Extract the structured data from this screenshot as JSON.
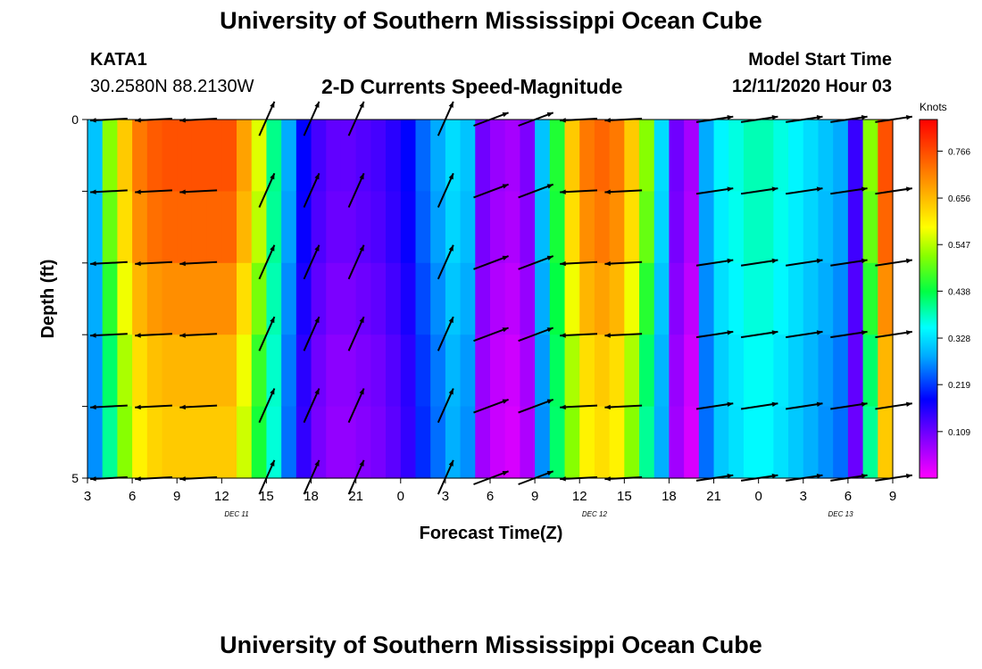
{
  "header": {
    "title": "University of Southern Mississippi Ocean Cube",
    "station_id": "KATA1",
    "station_coords": "30.2580N 88.2130W",
    "chart_title": "2-D Currents Speed-Magnitude",
    "model_start_label": "Model Start Time",
    "model_start_value": "12/11/2020 Hour 03"
  },
  "footer": {
    "title": "University of Southern Mississippi Ocean Cube"
  },
  "chart_data": {
    "type": "heatmap",
    "xlabel": "Forecast Time(Z)",
    "ylabel": "Depth (ft)",
    "x_ticks": [
      "3",
      "6",
      "9",
      "12",
      "15",
      "18",
      "21",
      "0",
      "3",
      "6",
      "9",
      "12",
      "15",
      "18",
      "21",
      "0",
      "3",
      "6",
      "9"
    ],
    "date_labels": [
      {
        "label": "DEC 11",
        "hour_index": 10
      },
      {
        "label": "DEC 12",
        "hour_index": 34
      },
      {
        "label": "DEC 13",
        "hour_index": 50.5
      }
    ],
    "y_ticks": [
      "0",
      "5"
    ],
    "ylim": [
      0,
      5
    ],
    "x_range_hours": [
      0,
      54
    ],
    "colorbar": {
      "unit": "Knots",
      "ticks": [
        "0.766",
        "0.656",
        "0.547",
        "0.438",
        "0.328",
        "0.219",
        "0.109"
      ],
      "range": [
        0,
        0.84
      ]
    },
    "speed_columns_knots": [
      0.3,
      0.5,
      0.62,
      0.7,
      0.73,
      0.74,
      0.74,
      0.74,
      0.74,
      0.74,
      0.66,
      0.55,
      0.4,
      0.28,
      0.18,
      0.13,
      0.11,
      0.11,
      0.12,
      0.13,
      0.15,
      0.18,
      0.24,
      0.28,
      0.32,
      0.3,
      0.1,
      0.07,
      0.06,
      0.09,
      0.3,
      0.45,
      0.62,
      0.7,
      0.72,
      0.7,
      0.62,
      0.5,
      0.32,
      0.1,
      0.06,
      0.28,
      0.34,
      0.36,
      0.38,
      0.38,
      0.36,
      0.34,
      0.32,
      0.3,
      0.28,
      0.14,
      0.5,
      0.74
    ],
    "arrow_columns_hours": [
      1.5,
      4.5,
      7.5,
      12,
      15,
      18,
      24,
      27,
      30,
      33,
      36,
      42,
      45,
      48,
      51,
      54
    ],
    "arrow_depths_ft": [
      0,
      1,
      2,
      3,
      4,
      5
    ]
  }
}
